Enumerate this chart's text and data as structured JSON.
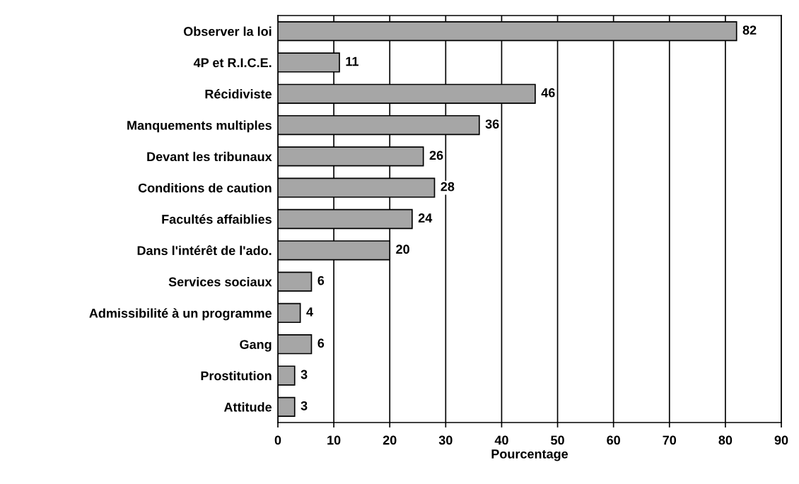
{
  "chart_data": {
    "type": "bar",
    "orientation": "horizontal",
    "xlabel": "Pourcentage",
    "categories": [
      "Observer la loi",
      "4P et R.I.C.E.",
      "Récidiviste",
      "Manquements multiples",
      "Devant les tribunaux",
      "Conditions de caution",
      "Facultés affaiblies",
      "Dans l'intérêt de l'ado.",
      "Services sociaux",
      "Admissibilité à un programme",
      "Gang",
      "Prostitution",
      "Attitude"
    ],
    "values": [
      82,
      11,
      46,
      36,
      26,
      28,
      24,
      20,
      6,
      4,
      6,
      3,
      3
    ],
    "color": "#a6a6a6",
    "xlim": [
      0,
      90
    ],
    "xticks": [
      0,
      10,
      20,
      30,
      40,
      50,
      60,
      70,
      80,
      90
    ],
    "grid": "x",
    "data_labels": true,
    "legend": false
  }
}
